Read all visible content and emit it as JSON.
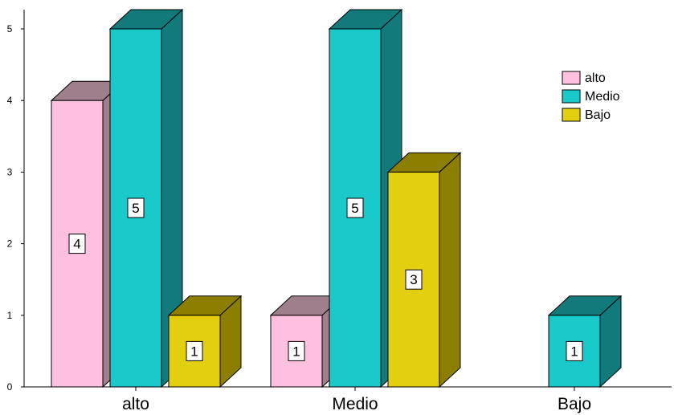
{
  "chart_data": {
    "type": "bar",
    "style": "3d-clustered",
    "categories": [
      "alto",
      "Medio",
      "Bajo"
    ],
    "series": [
      {
        "name": "alto",
        "values": [
          4,
          1,
          0
        ],
        "color": "#ffbfdf",
        "top_color": "#a07f8c",
        "side_color": "#a07f8c"
      },
      {
        "name": "Medio",
        "values": [
          5,
          5,
          1
        ],
        "color": "#1ac9c9",
        "top_color": "#127a7a",
        "side_color": "#127a7a"
      },
      {
        "name": "Bajo",
        "values": [
          1,
          3,
          0
        ],
        "color": "#e3cf0f",
        "top_color": "#8c7f00",
        "side_color": "#8c7f00"
      }
    ],
    "data_labels": [
      [
        "4",
        "1",
        ""
      ],
      [
        "5",
        "5",
        "1"
      ],
      [
        "1",
        "3",
        ""
      ]
    ],
    "y_ticks": [
      "0",
      "1",
      "2",
      "3",
      "4",
      "5"
    ],
    "ylim": [
      0,
      5
    ],
    "title": "",
    "xlabel": "",
    "ylabel": "",
    "grid": false,
    "legend_position": "top-right"
  }
}
